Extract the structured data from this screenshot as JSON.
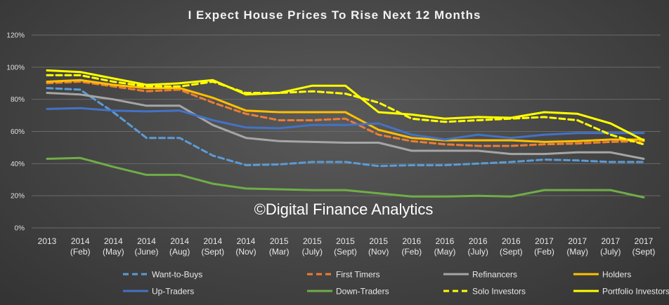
{
  "chart_data": {
    "type": "line",
    "title": "I Expect House Prices To Rise Next 12 Months",
    "watermark": "©Digital Finance Analytics",
    "x": [
      [
        "2013"
      ],
      [
        "2014",
        "(Feb)"
      ],
      [
        "2014",
        "(May)"
      ],
      [
        "2014",
        "(June)"
      ],
      [
        "2014",
        "(Aug)"
      ],
      [
        "2014",
        "(Sept)"
      ],
      [
        "2014",
        "(Nov)"
      ],
      [
        "2015",
        "(Mar)"
      ],
      [
        "2015",
        "(July)"
      ],
      [
        "2015",
        "(Sept)"
      ],
      [
        "2015",
        "(Nov)"
      ],
      [
        "2016",
        "(Feb)"
      ],
      [
        "2016",
        "(May)"
      ],
      [
        "2016",
        "(July)"
      ],
      [
        "2016",
        "(Sept)"
      ],
      [
        "2017",
        "(Feb)"
      ],
      [
        "2017",
        "(May)"
      ],
      [
        "2017",
        "(July)"
      ],
      [
        "2017",
        "(Sept)"
      ]
    ],
    "yticks": [
      "0%",
      "20%",
      "40%",
      "60%",
      "80%",
      "100%",
      "120%"
    ],
    "ylim": [
      0,
      120
    ],
    "grid": true,
    "legend_position": "bottom",
    "series": [
      {
        "name": "Want-to-Buys",
        "color": "#5b9bd5",
        "dash": true,
        "values": [
          87,
          86,
          72,
          56,
          56,
          45,
          39,
          39.5,
          41,
          41,
          38.5,
          39,
          39,
          40,
          41,
          42.5,
          42,
          41,
          41
        ]
      },
      {
        "name": "First Timers",
        "color": "#ed7d31",
        "dash": true,
        "values": [
          90,
          91,
          88,
          85,
          86,
          78,
          71,
          67,
          67,
          68,
          58,
          54,
          52,
          51,
          51,
          52,
          52.5,
          53.5,
          54
        ]
      },
      {
        "name": "Refinancers",
        "color": "#a5a5a5",
        "dash": false,
        "values": [
          84,
          83,
          80,
          76,
          76,
          64,
          56,
          54,
          53.5,
          53,
          53,
          48,
          48,
          48,
          46,
          46,
          47,
          47,
          43
        ]
      },
      {
        "name": "Holders",
        "color": "#ffc000",
        "dash": false,
        "values": [
          91,
          92,
          89,
          87,
          87,
          81,
          73,
          72,
          72,
          72,
          61,
          56,
          54.5,
          54.5,
          54.5,
          53.5,
          54,
          55,
          55
        ]
      },
      {
        "name": "Up-Traders",
        "color": "#4472c4",
        "dash": false,
        "values": [
          74,
          74.5,
          73,
          72.5,
          73,
          67,
          62.5,
          62,
          64,
          64,
          65,
          58,
          55,
          58,
          56,
          58,
          59,
          59,
          59
        ]
      },
      {
        "name": "Down-Traders",
        "color": "#70ad47",
        "dash": false,
        "values": [
          43,
          43.5,
          38,
          33,
          33,
          27.5,
          24.5,
          24,
          23.5,
          23.5,
          21.5,
          19.5,
          19.5,
          20,
          19.5,
          23.5,
          23.5,
          23.5,
          19
        ]
      },
      {
        "name": "Solo Investors",
        "color": "#ffff00",
        "dash": true,
        "values": [
          95,
          95,
          91,
          88,
          88,
          91,
          84,
          84,
          85,
          83.5,
          78,
          68,
          66,
          67,
          68,
          69,
          67,
          58,
          52
        ]
      },
      {
        "name": "Portfolio Investors",
        "color": "#ffff00",
        "dash": false,
        "values": [
          98,
          97,
          93,
          89,
          90,
          92,
          83,
          84,
          88.5,
          88.5,
          72,
          70.5,
          68,
          69,
          68.5,
          72,
          71,
          65,
          54.5
        ]
      }
    ]
  }
}
